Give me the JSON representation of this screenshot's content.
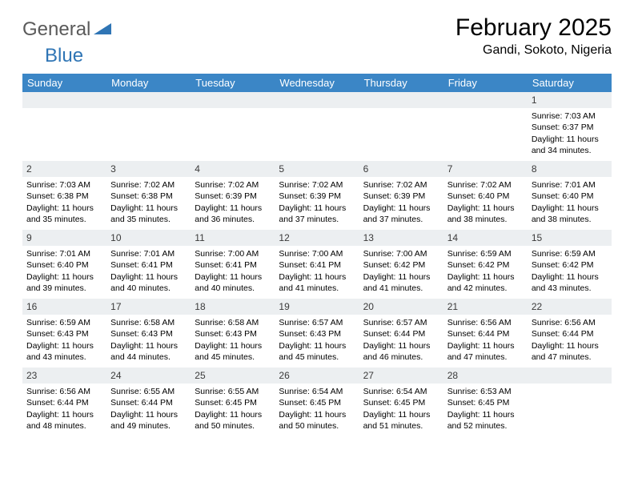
{
  "brand": {
    "part1": "General",
    "part2": "Blue"
  },
  "title": "February 2025",
  "location": "Gandi, Sokoto, Nigeria",
  "colors": {
    "header_bg": "#3b86c6",
    "header_text": "#ffffff",
    "daynum_bg": "#eceff1",
    "brand_gray": "#5a5a5a",
    "brand_blue": "#2f75b5",
    "page_bg": "#ffffff"
  },
  "weekdays": [
    "Sunday",
    "Monday",
    "Tuesday",
    "Wednesday",
    "Thursday",
    "Friday",
    "Saturday"
  ],
  "layout": {
    "first_weekday_index": 6,
    "days_in_month": 28
  },
  "days": {
    "1": {
      "sunrise": "7:03 AM",
      "sunset": "6:37 PM",
      "daylight": "11 hours and 34 minutes."
    },
    "2": {
      "sunrise": "7:03 AM",
      "sunset": "6:38 PM",
      "daylight": "11 hours and 35 minutes."
    },
    "3": {
      "sunrise": "7:02 AM",
      "sunset": "6:38 PM",
      "daylight": "11 hours and 35 minutes."
    },
    "4": {
      "sunrise": "7:02 AM",
      "sunset": "6:39 PM",
      "daylight": "11 hours and 36 minutes."
    },
    "5": {
      "sunrise": "7:02 AM",
      "sunset": "6:39 PM",
      "daylight": "11 hours and 37 minutes."
    },
    "6": {
      "sunrise": "7:02 AM",
      "sunset": "6:39 PM",
      "daylight": "11 hours and 37 minutes."
    },
    "7": {
      "sunrise": "7:02 AM",
      "sunset": "6:40 PM",
      "daylight": "11 hours and 38 minutes."
    },
    "8": {
      "sunrise": "7:01 AM",
      "sunset": "6:40 PM",
      "daylight": "11 hours and 38 minutes."
    },
    "9": {
      "sunrise": "7:01 AM",
      "sunset": "6:40 PM",
      "daylight": "11 hours and 39 minutes."
    },
    "10": {
      "sunrise": "7:01 AM",
      "sunset": "6:41 PM",
      "daylight": "11 hours and 40 minutes."
    },
    "11": {
      "sunrise": "7:00 AM",
      "sunset": "6:41 PM",
      "daylight": "11 hours and 40 minutes."
    },
    "12": {
      "sunrise": "7:00 AM",
      "sunset": "6:41 PM",
      "daylight": "11 hours and 41 minutes."
    },
    "13": {
      "sunrise": "7:00 AM",
      "sunset": "6:42 PM",
      "daylight": "11 hours and 41 minutes."
    },
    "14": {
      "sunrise": "6:59 AM",
      "sunset": "6:42 PM",
      "daylight": "11 hours and 42 minutes."
    },
    "15": {
      "sunrise": "6:59 AM",
      "sunset": "6:42 PM",
      "daylight": "11 hours and 43 minutes."
    },
    "16": {
      "sunrise": "6:59 AM",
      "sunset": "6:43 PM",
      "daylight": "11 hours and 43 minutes."
    },
    "17": {
      "sunrise": "6:58 AM",
      "sunset": "6:43 PM",
      "daylight": "11 hours and 44 minutes."
    },
    "18": {
      "sunrise": "6:58 AM",
      "sunset": "6:43 PM",
      "daylight": "11 hours and 45 minutes."
    },
    "19": {
      "sunrise": "6:57 AM",
      "sunset": "6:43 PM",
      "daylight": "11 hours and 45 minutes."
    },
    "20": {
      "sunrise": "6:57 AM",
      "sunset": "6:44 PM",
      "daylight": "11 hours and 46 minutes."
    },
    "21": {
      "sunrise": "6:56 AM",
      "sunset": "6:44 PM",
      "daylight": "11 hours and 47 minutes."
    },
    "22": {
      "sunrise": "6:56 AM",
      "sunset": "6:44 PM",
      "daylight": "11 hours and 47 minutes."
    },
    "23": {
      "sunrise": "6:56 AM",
      "sunset": "6:44 PM",
      "daylight": "11 hours and 48 minutes."
    },
    "24": {
      "sunrise": "6:55 AM",
      "sunset": "6:44 PM",
      "daylight": "11 hours and 49 minutes."
    },
    "25": {
      "sunrise": "6:55 AM",
      "sunset": "6:45 PM",
      "daylight": "11 hours and 50 minutes."
    },
    "26": {
      "sunrise": "6:54 AM",
      "sunset": "6:45 PM",
      "daylight": "11 hours and 50 minutes."
    },
    "27": {
      "sunrise": "6:54 AM",
      "sunset": "6:45 PM",
      "daylight": "11 hours and 51 minutes."
    },
    "28": {
      "sunrise": "6:53 AM",
      "sunset": "6:45 PM",
      "daylight": "11 hours and 52 minutes."
    }
  },
  "labels": {
    "sunrise_prefix": "Sunrise: ",
    "sunset_prefix": "Sunset: ",
    "daylight_prefix": "Daylight: "
  }
}
